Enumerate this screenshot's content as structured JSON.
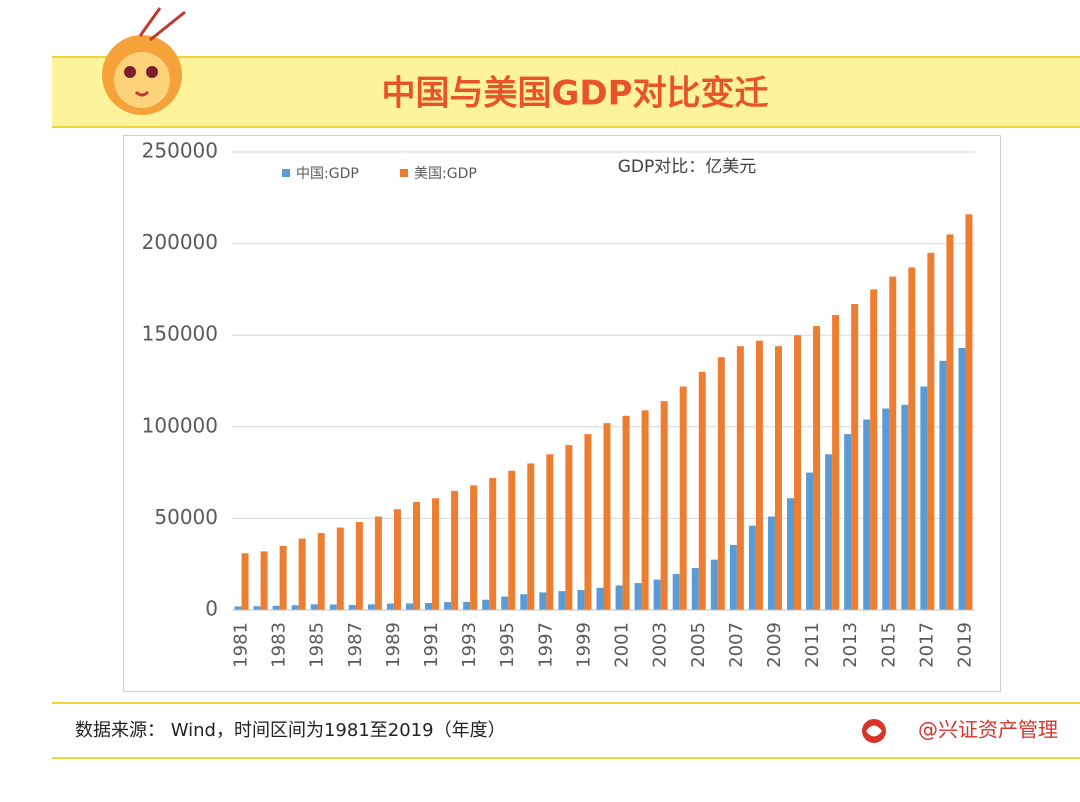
{
  "header": {
    "title": "中国与美国GDP对比变迁"
  },
  "chart_data": {
    "type": "bar",
    "annotation": "GDP对比：亿美元",
    "categories": [
      "1981",
      null,
      "1983",
      null,
      "1985",
      null,
      "1987",
      null,
      "1989",
      null,
      "1991",
      null,
      "1993",
      null,
      "1995",
      null,
      "1997",
      null,
      "1999",
      null,
      "2001",
      null,
      "2003",
      null,
      "2005",
      null,
      "2007",
      null,
      "2009",
      null,
      "2011",
      null,
      "2013",
      null,
      "2015",
      null,
      "2017",
      null,
      "2019"
    ],
    "series": [
      {
        "name": "中国:GDP",
        "color": "#5b9bd5",
        "values": [
          1950,
          2050,
          2300,
          2600,
          3100,
          3000,
          2700,
          3100,
          3500,
          3600,
          3800,
          4300,
          4400,
          5600,
          7300,
          8600,
          9600,
          10300,
          10900,
          12100,
          13400,
          14700,
          16600,
          19600,
          22900,
          27500,
          35500,
          46000,
          51000,
          61000,
          75000,
          85000,
          96000,
          104000,
          110000,
          112000,
          122000,
          136000,
          143000
        ]
      },
      {
        "name": "美国:GDP",
        "color": "#ed7d31",
        "values": [
          31000,
          32000,
          35000,
          39000,
          42000,
          45000,
          48000,
          51000,
          55000,
          59000,
          61000,
          65000,
          68000,
          72000,
          76000,
          80000,
          85000,
          90000,
          96000,
          102000,
          106000,
          109000,
          114000,
          122000,
          130000,
          138000,
          144000,
          147000,
          144000,
          150000,
          155000,
          161000,
          167000,
          175000,
          182000,
          187000,
          195000,
          205000,
          216000
        ]
      }
    ],
    "ylim": [
      0,
      250000
    ],
    "yticks": [
      0,
      50000,
      100000,
      150000,
      200000,
      250000
    ],
    "grid": true
  },
  "footer": {
    "source": "数据来源： Wind，时间区间为1981至2019（年度）",
    "brand": "@兴证资产管理"
  }
}
